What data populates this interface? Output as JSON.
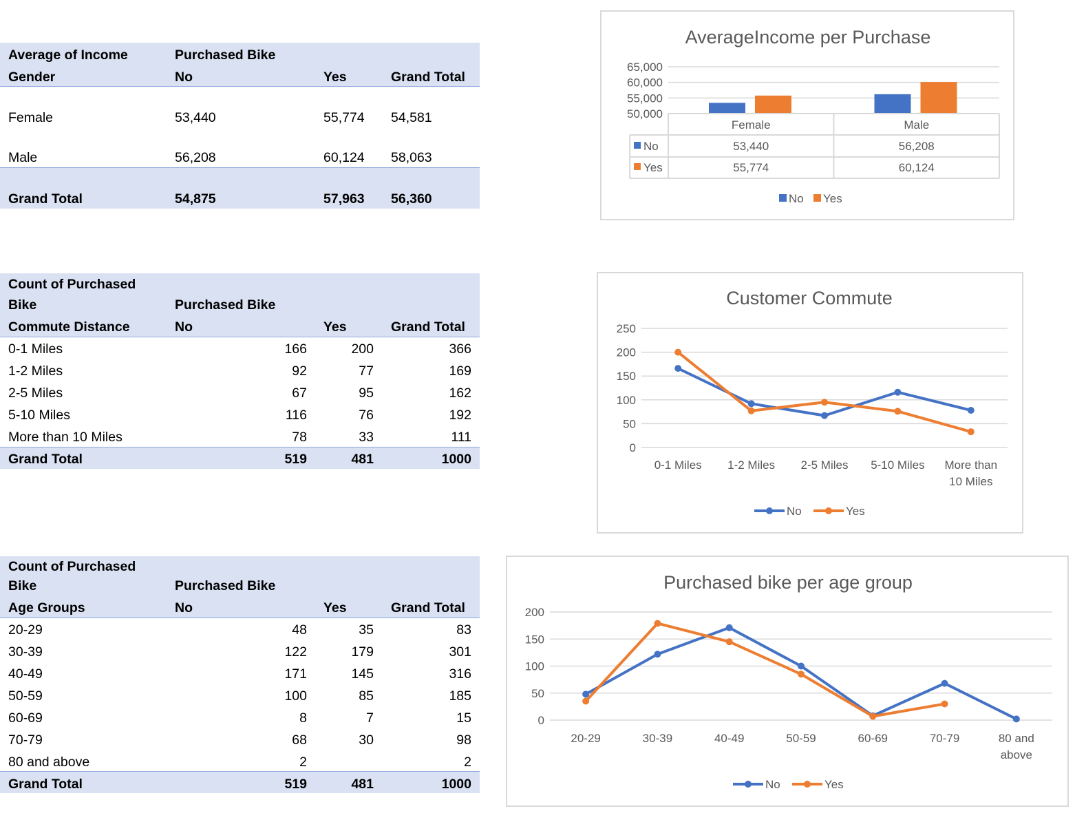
{
  "tables": [
    {
      "header_lines": [
        [
          "Average of Income",
          "Purchased Bike",
          "",
          ""
        ],
        [
          "Gender",
          "No",
          "Yes",
          "Grand Total"
        ]
      ],
      "rows": [
        [
          "Female",
          "53,440",
          "55,774",
          "54,581"
        ],
        [
          "Male",
          "56,208",
          "60,124",
          "58,063"
        ]
      ],
      "total": [
        "Grand Total",
        "54,875",
        "57,963",
        "56,360"
      ]
    },
    {
      "header_lines": [
        [
          "Count of Purchased",
          "",
          "",
          ""
        ],
        [
          "Bike",
          "Purchased Bike",
          "",
          ""
        ],
        [
          "Commute Distance",
          "No",
          "Yes",
          "Grand Total"
        ]
      ],
      "rows": [
        [
          "0-1 Miles",
          "166",
          "200",
          "366"
        ],
        [
          "1-2 Miles",
          "92",
          "77",
          "169"
        ],
        [
          "2-5 Miles",
          "67",
          "95",
          "162"
        ],
        [
          "5-10 Miles",
          "116",
          "76",
          "192"
        ],
        [
          "More than 10 Miles",
          "78",
          "33",
          "111"
        ]
      ],
      "total": [
        "Grand Total",
        "519",
        "481",
        "1000"
      ]
    },
    {
      "header_lines": [
        [
          "Count of Purchased",
          "",
          "",
          ""
        ],
        [
          "Bike",
          "Purchased Bike",
          "",
          ""
        ],
        [
          "Age Groups",
          "No",
          "Yes",
          "Grand Total"
        ]
      ],
      "rows": [
        [
          "20-29",
          "48",
          "35",
          "83"
        ],
        [
          "30-39",
          "122",
          "179",
          "301"
        ],
        [
          "40-49",
          "171",
          "145",
          "316"
        ],
        [
          "50-59",
          "100",
          "85",
          "185"
        ],
        [
          "60-69",
          "8",
          "7",
          "15"
        ],
        [
          "70-79",
          "68",
          "30",
          "98"
        ],
        [
          "80 and above",
          "2",
          "",
          "2"
        ]
      ],
      "total": [
        "Grand Total",
        "519",
        "481",
        "1000"
      ]
    }
  ],
  "chart_data": [
    {
      "type": "bar",
      "title": "AverageIncome per Purchase",
      "categories": [
        "Female",
        "Male"
      ],
      "series": [
        {
          "name": "No",
          "values": [
            53440,
            56208
          ],
          "labels": [
            "53,440",
            "56,208"
          ],
          "color": "#4472c4"
        },
        {
          "name": "Yes",
          "values": [
            55774,
            60124
          ],
          "labels": [
            "55,774",
            "60,124"
          ],
          "color": "#ed7d31"
        }
      ],
      "ylim": [
        50000,
        65000
      ],
      "yticks": [
        "65,000",
        "60,000",
        "55,000",
        "50,000"
      ],
      "grid": true,
      "data_table": true,
      "legend": "bottom"
    },
    {
      "type": "line",
      "title": "Customer Commute",
      "categories": [
        "0-1 Miles",
        "1-2 Miles",
        "2-5 Miles",
        "5-10 Miles",
        "More than 10 Miles"
      ],
      "series": [
        {
          "name": "No",
          "values": [
            166,
            92,
            67,
            116,
            78
          ],
          "color": "#4472c4"
        },
        {
          "name": "Yes",
          "values": [
            200,
            77,
            95,
            76,
            33
          ],
          "color": "#ed7d31"
        }
      ],
      "ylim": [
        0,
        250
      ],
      "yticks": [
        "250",
        "200",
        "150",
        "100",
        "50",
        "0"
      ],
      "grid": true,
      "legend": "bottom"
    },
    {
      "type": "line",
      "title": "Purchased bike per age group",
      "categories": [
        "20-29",
        "30-39",
        "40-49",
        "50-59",
        "60-69",
        "70-79",
        "80 and above"
      ],
      "series": [
        {
          "name": "No",
          "values": [
            48,
            122,
            171,
            100,
            8,
            68,
            2
          ],
          "color": "#4472c4"
        },
        {
          "name": "Yes",
          "values": [
            35,
            179,
            145,
            85,
            7,
            30,
            null
          ],
          "color": "#ed7d31"
        }
      ],
      "ylim": [
        0,
        200
      ],
      "yticks": [
        "200",
        "150",
        "100",
        "50",
        "0"
      ],
      "grid": true,
      "legend": "bottom"
    }
  ]
}
